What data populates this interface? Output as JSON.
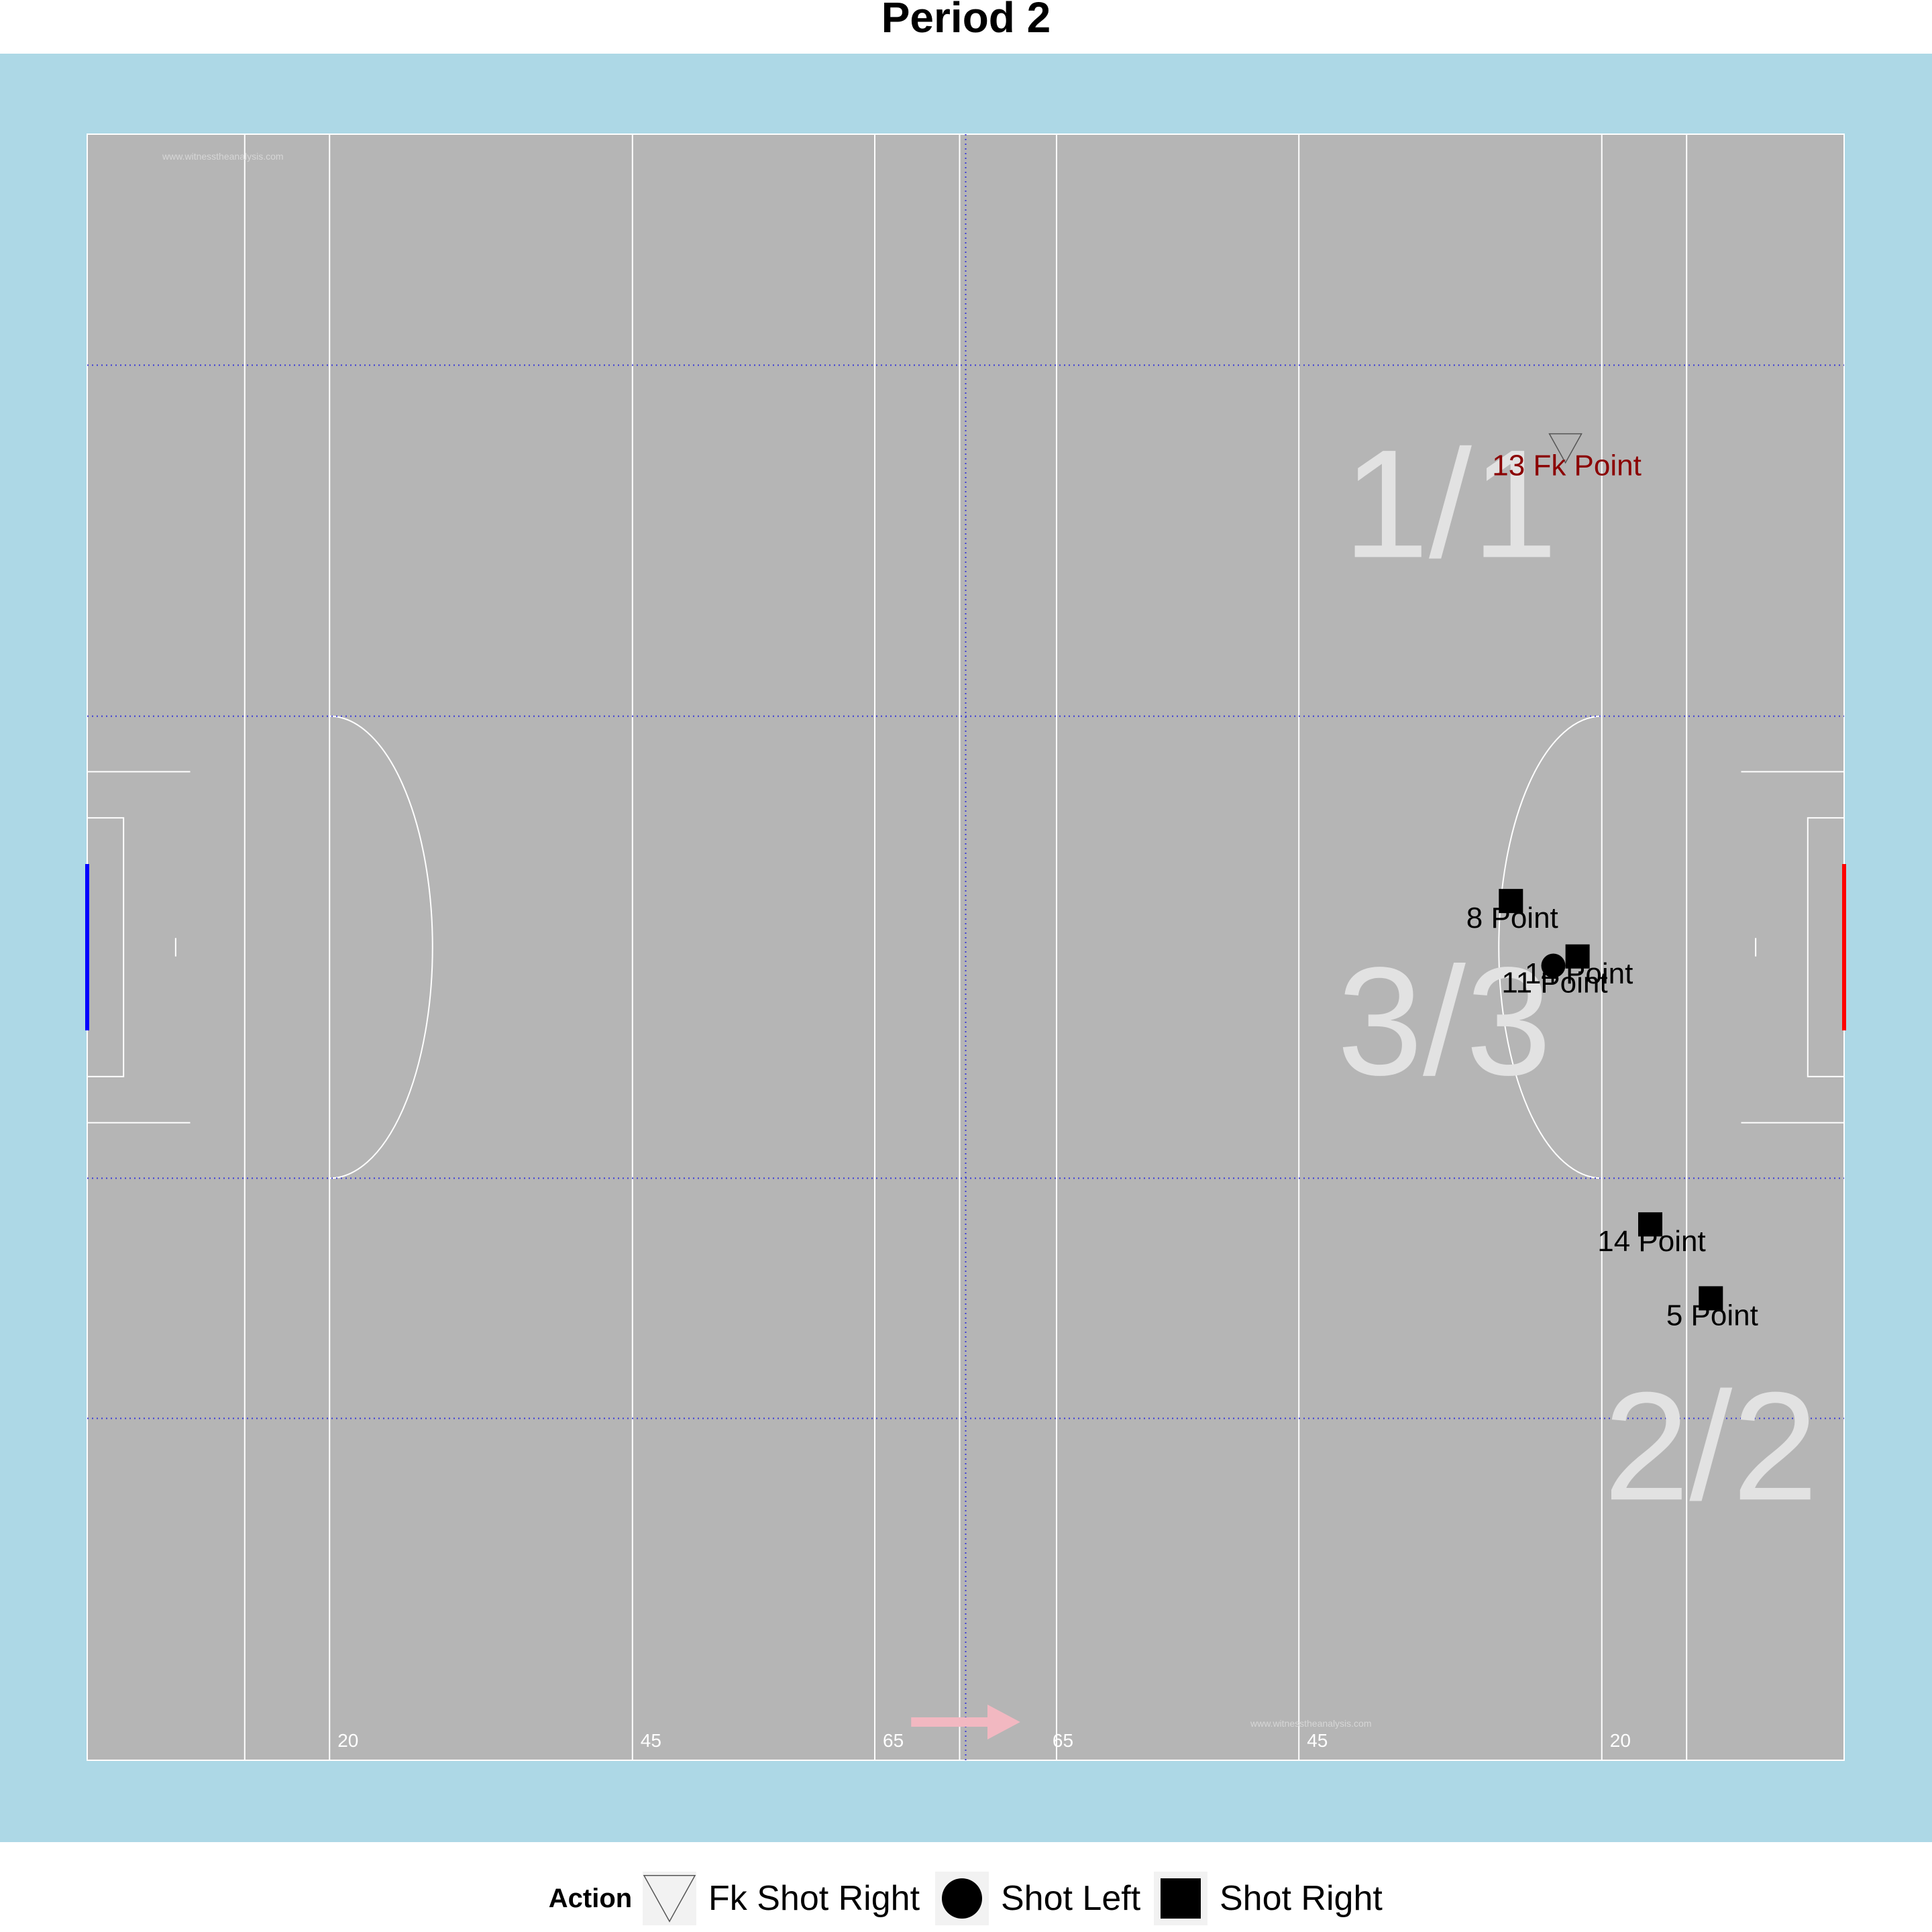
{
  "chart_data": {
    "type": "scatter",
    "title": "Period 2",
    "pitch": {
      "x_range": [
        0,
        145
      ],
      "y_range": [
        0,
        88
      ],
      "line_x": [
        13,
        20,
        45,
        65,
        72,
        80,
        100,
        125,
        132
      ],
      "band_y": [
        18.5,
        31.5,
        56.5,
        75.5
      ],
      "center_x": 72.5,
      "yard_labels": [
        {
          "x": 20,
          "label": "20"
        },
        {
          "x": 45,
          "label": "45"
        },
        {
          "x": 65,
          "label": "65"
        },
        {
          "x": 79,
          "label": "65"
        },
        {
          "x": 100,
          "label": "45"
        },
        {
          "x": 125,
          "label": "20"
        }
      ],
      "watermark": "www.witnesstheanalysis.com",
      "colors": {
        "surround": "#add8e6",
        "pitch": "#b5b5b5",
        "lines": "#ffffff",
        "dotted": "#3b3bd6",
        "left_goal": "#0000ff",
        "right_goal": "#ff0000",
        "zone_label": "#e2e2e2",
        "arrow": "#f2b8c1"
      }
    },
    "zone_labels": [
      {
        "label": "1/1",
        "x": 112.5,
        "y": 68
      },
      {
        "label": "3/3",
        "x": 112,
        "y": 40
      },
      {
        "label": "2/2",
        "x": 134,
        "y": 17
      }
    ],
    "points": [
      {
        "x": 122,
        "y": 71,
        "action": "Fk Shot Right",
        "label": "13 Fk Point",
        "label_color": "#8b0000"
      },
      {
        "x": 117.5,
        "y": 46.5,
        "action": "Shot Right",
        "label": "8 Point",
        "label_color": "#000000"
      },
      {
        "x": 121,
        "y": 43,
        "action": "Shot Left",
        "label": "11 Point",
        "label_color": "#000000"
      },
      {
        "x": 123,
        "y": 43.5,
        "action": "Shot Right",
        "label": "14 Point",
        "label_color": "#000000"
      },
      {
        "x": 129,
        "y": 29,
        "action": "Shot Right",
        "label": "14 Point",
        "label_color": "#000000"
      },
      {
        "x": 134,
        "y": 25,
        "action": "Shot Right",
        "label": "5 Point",
        "label_color": "#000000"
      }
    ],
    "legend": {
      "title": "Action",
      "position": "bottom",
      "entries": [
        {
          "name": "Fk Shot Right",
          "shape": "triangle-down"
        },
        {
          "name": "Shot Left",
          "shape": "circle"
        },
        {
          "name": "Shot Right",
          "shape": "square"
        }
      ]
    }
  }
}
